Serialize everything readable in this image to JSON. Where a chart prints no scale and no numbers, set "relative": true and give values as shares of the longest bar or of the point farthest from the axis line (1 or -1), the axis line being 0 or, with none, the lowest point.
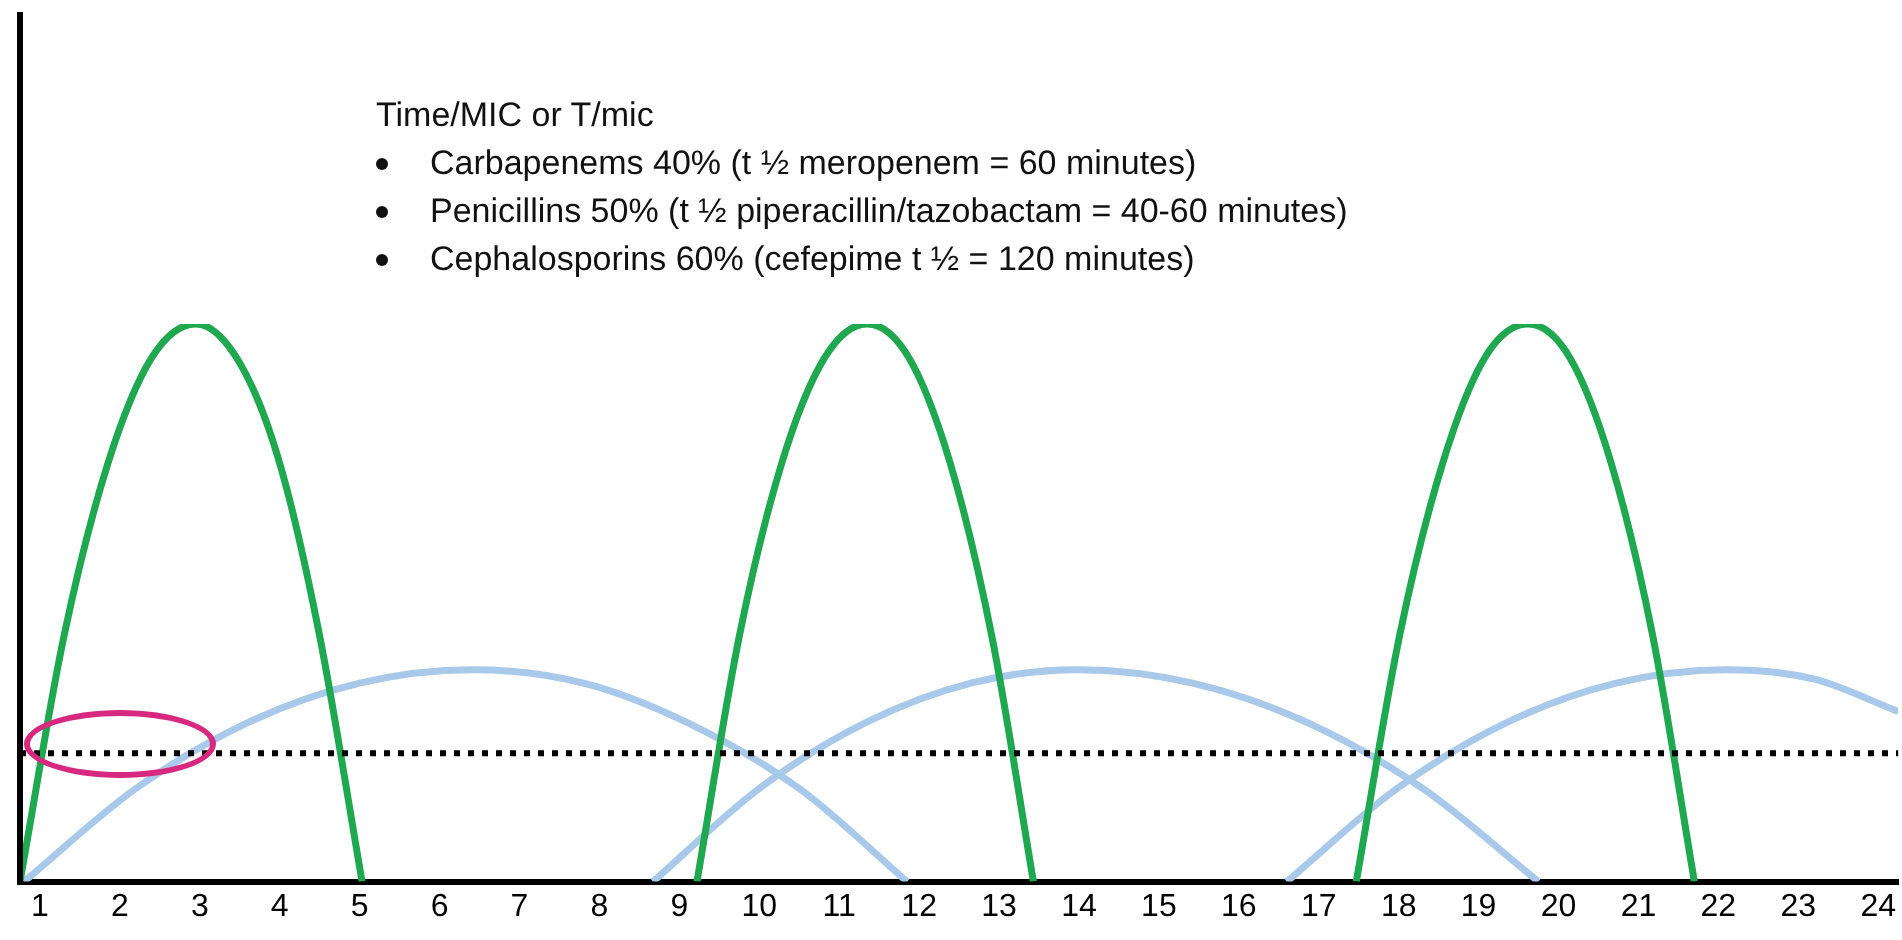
{
  "chart_data": {
    "type": "line",
    "title": "Time/MIC or T/mic",
    "relative": true,
    "annotations": [
      "Carbapenems 40% (t ½ meropenem = 60 minutes)",
      "Penicillins 50% (t ½ piperacillin/tazobactam = 40-60 minutes)",
      "Cephalosporins 60% (cefepime t ½ = 120 minutes)"
    ],
    "xlim": [
      0.75,
      24.25
    ],
    "xticks": [
      1,
      2,
      3,
      4,
      5,
      6,
      7,
      8,
      9,
      10,
      11,
      12,
      13,
      14,
      15,
      16,
      17,
      18,
      19,
      20,
      21,
      22,
      23,
      24
    ],
    "grid": false,
    "legend": false,
    "marker": "none",
    "line_style": "solid",
    "series": [
      {
        "color": "#1fa84f",
        "x": [
          0.75,
          1.3,
          1.85,
          2.4,
          2.95,
          3.5,
          4.0,
          4.5,
          5.03
        ],
        "values": [
          0,
          0.44,
          0.75,
          0.94,
          1,
          0.93,
          0.75,
          0.44,
          0
        ]
      },
      {
        "color": "#1fa84f",
        "x": [
          9.22,
          9.75,
          10.28,
          10.82,
          11.35,
          11.87,
          12.39,
          12.91,
          13.43
        ],
        "values": [
          0,
          0.44,
          0.75,
          0.94,
          1,
          0.94,
          0.75,
          0.44,
          0
        ]
      },
      {
        "color": "#1fa84f",
        "x": [
          17.47,
          18.01,
          18.55,
          19.08,
          19.62,
          20.14,
          20.66,
          21.18,
          21.7
        ],
        "values": [
          0,
          0.44,
          0.75,
          0.94,
          1,
          0.94,
          0.75,
          0.44,
          0
        ]
      },
      {
        "color": "#a9c9ea",
        "x": [
          0.8,
          2.2,
          3.6,
          5.0,
          6.41,
          7.8,
          9.1,
          10.5,
          11.85
        ],
        "values": [
          0,
          0.167,
          0.285,
          0.356,
          0.38,
          0.356,
          0.285,
          0.167,
          0
        ]
      },
      {
        "color": "#a9c9ea",
        "x": [
          8.67,
          10.0,
          11.33,
          12.65,
          13.98,
          15.42,
          16.86,
          18.3,
          19.75
        ],
        "values": [
          0,
          0.167,
          0.285,
          0.356,
          0.38,
          0.356,
          0.285,
          0.167,
          0
        ]
      },
      {
        "color": "#a9c9ea",
        "x": [
          16.6,
          17.98,
          19.35,
          20.72,
          22.1,
          23.2,
          24.25
        ],
        "values": [
          0,
          0.167,
          0.285,
          0.356,
          0.38,
          0.363,
          0.305
        ]
      }
    ],
    "ref_lines": [
      {
        "axis": "y",
        "value": 0.23,
        "color": "#000000",
        "line_style": "dotted"
      }
    ]
  }
}
